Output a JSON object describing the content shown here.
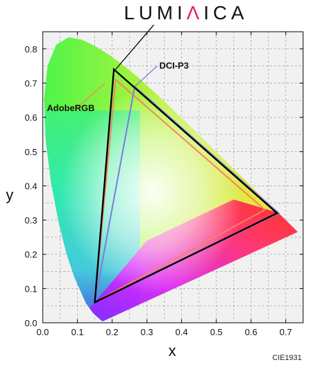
{
  "brand": {
    "text": "LUMIΛICA",
    "accent_colors": [
      "#e91e63",
      "#8bc34a",
      "#03a9f4"
    ],
    "text_color": "#111111"
  },
  "chart_data": {
    "type": "scatter",
    "title": "",
    "xlabel": "x",
    "ylabel": "y",
    "xlim": [
      0.0,
      0.75
    ],
    "ylim": [
      0.0,
      0.85
    ],
    "xticks": [
      "0.0",
      "0.1",
      "0.2",
      "0.3",
      "0.4",
      "0.5",
      "0.6",
      "0.7"
    ],
    "yticks": [
      "0.0",
      "0.1",
      "0.2",
      "0.3",
      "0.4",
      "0.5",
      "0.6",
      "0.7",
      "0.8"
    ],
    "grid": true,
    "gamut_label": "CIE1931",
    "spectral_locus": [
      [
        0.1741,
        0.005
      ],
      [
        0.1733,
        0.0048
      ],
      [
        0.1726,
        0.0048
      ],
      [
        0.1714,
        0.0051
      ],
      [
        0.1689,
        0.0069
      ],
      [
        0.1644,
        0.0109
      ],
      [
        0.1566,
        0.0177
      ],
      [
        0.144,
        0.0297
      ],
      [
        0.1241,
        0.0578
      ],
      [
        0.0913,
        0.1327
      ],
      [
        0.0687,
        0.2007
      ],
      [
        0.0454,
        0.295
      ],
      [
        0.0235,
        0.4127
      ],
      [
        0.0082,
        0.5384
      ],
      [
        0.0039,
        0.6548
      ],
      [
        0.0139,
        0.7502
      ],
      [
        0.0389,
        0.812
      ],
      [
        0.0743,
        0.8338
      ],
      [
        0.1142,
        0.8262
      ],
      [
        0.1547,
        0.8059
      ],
      [
        0.1929,
        0.7816
      ],
      [
        0.2296,
        0.7543
      ],
      [
        0.2658,
        0.7243
      ],
      [
        0.3016,
        0.6923
      ],
      [
        0.3373,
        0.6589
      ],
      [
        0.3731,
        0.6245
      ],
      [
        0.4087,
        0.5896
      ],
      [
        0.4441,
        0.5547
      ],
      [
        0.4788,
        0.5202
      ],
      [
        0.5125,
        0.4866
      ],
      [
        0.5448,
        0.4544
      ],
      [
        0.5752,
        0.4242
      ],
      [
        0.6029,
        0.3965
      ],
      [
        0.627,
        0.3725
      ],
      [
        0.6482,
        0.3514
      ],
      [
        0.6658,
        0.334
      ],
      [
        0.6801,
        0.3197
      ],
      [
        0.6915,
        0.3083
      ],
      [
        0.7006,
        0.2993
      ],
      [
        0.7079,
        0.292
      ],
      [
        0.714,
        0.2859
      ],
      [
        0.719,
        0.2809
      ],
      [
        0.723,
        0.277
      ],
      [
        0.726,
        0.274
      ],
      [
        0.7283,
        0.2717
      ],
      [
        0.73,
        0.27
      ],
      [
        0.7347,
        0.2653
      ]
    ],
    "series": [
      {
        "name": "AdobeRGB",
        "color": "#f4845f",
        "points": [
          [
            0.64,
            0.33
          ],
          [
            0.21,
            0.71
          ],
          [
            0.15,
            0.06
          ]
        ]
      },
      {
        "name": "DCI-P3",
        "color": "#7b7bdf",
        "points": [
          [
            0.68,
            0.32
          ],
          [
            0.265,
            0.69
          ],
          [
            0.15,
            0.06
          ]
        ]
      },
      {
        "name": "",
        "color": "#000000",
        "points": [
          [
            0.675,
            0.32
          ],
          [
            0.205,
            0.74
          ],
          [
            0.15,
            0.06
          ]
        ]
      }
    ],
    "callouts": [
      {
        "series": 2,
        "target": [
          0.21,
          0.74
        ],
        "label_at": [
          0.32,
          0.87
        ]
      },
      {
        "series": 1,
        "target": [
          0.265,
          0.69
        ],
        "label_at": [
          0.33,
          0.75
        ]
      },
      {
        "series": 0,
        "target": [
          0.18,
          0.7
        ],
        "label_at": [
          0.1,
          0.63
        ]
      }
    ]
  }
}
